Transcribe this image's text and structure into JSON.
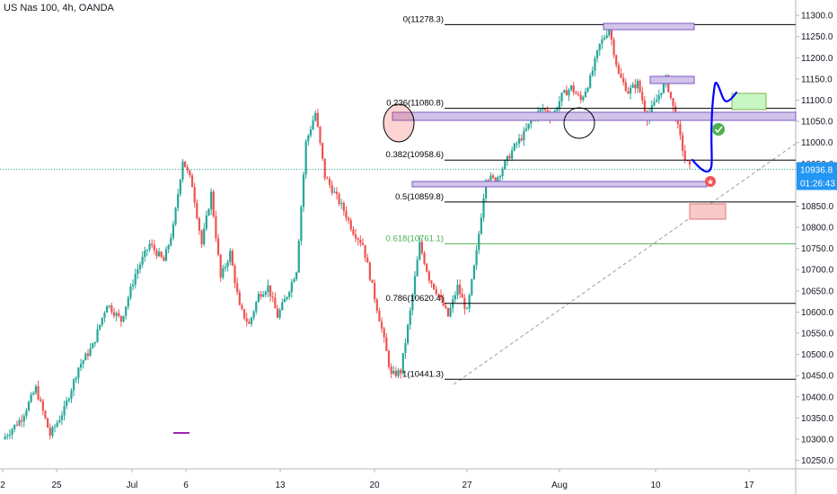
{
  "header": {
    "symbol_title": "US Nas 100, 4h, OANDA"
  },
  "colors": {
    "up": "#26a69a",
    "down": "#ef5350",
    "fib": "#000000",
    "fib_618": "#4caf50",
    "price_tag": "#2196f3",
    "zone_fill": "#d1c4e9",
    "zone_border": "#7e57c2",
    "drawing": "#0000ff",
    "target_fill": "#c8f7c5",
    "stop_fill": "#f8c9c9",
    "trendline": "#9e9e9e"
  },
  "price_tag": {
    "value": "10936.8",
    "timer": "01:26:43"
  },
  "chart_data": {
    "type": "candlestick",
    "title": "US Nas 100, 4h, OANDA",
    "ylim": [
      10230,
      11330
    ],
    "y_ticks": [
      10250,
      10300,
      10350,
      10400,
      10450,
      10500,
      10550,
      10600,
      10650,
      10700,
      10750,
      10800,
      10850,
      10900,
      10950,
      11000,
      11050,
      11100,
      11150,
      11200,
      11250,
      11300
    ],
    "y_tick_labels": [
      "10250.0",
      "10300.0",
      "10350.0",
      "10400.0",
      "10450.0",
      "10500.0",
      "10550.0",
      "10600.0",
      "10650.0",
      "10700.0",
      "10750.0",
      "10800.0",
      "10850.0",
      "10900.0",
      "10950.0",
      "11000.0",
      "11050.0",
      "11100.0",
      "11150.0",
      "11200.0",
      "11250.0",
      "11300.0"
    ],
    "x_tick_labels": [
      "2",
      "25",
      "Jul",
      "6",
      "13",
      "20",
      "27",
      "Aug",
      "10",
      "17"
    ],
    "last_price": 10936.8,
    "fib_levels": [
      {
        "label": "0(11278.3)",
        "price": 11278.3
      },
      {
        "label": "0.236(11080.8)",
        "price": 11080.8
      },
      {
        "label": "0.382(10958.6)",
        "price": 10958.6
      },
      {
        "label": "0.5(10859.8)",
        "price": 10859.8
      },
      {
        "label": "0.618(10761.1)",
        "price": 10761.1
      },
      {
        "label": "0.786(10620.4)",
        "price": 10620.4
      },
      {
        "label": "1(10441.3)",
        "price": 10441.3
      }
    ],
    "series": [
      {
        "name": "",
        "waypoints": [
          [
            0,
            10300
          ],
          [
            8,
            10350
          ],
          [
            14,
            10420
          ],
          [
            20,
            10310
          ],
          [
            26,
            10370
          ],
          [
            32,
            10470
          ],
          [
            38,
            10520
          ],
          [
            44,
            10620
          ],
          [
            50,
            10580
          ],
          [
            56,
            10690
          ],
          [
            62,
            10760
          ],
          [
            68,
            10720
          ],
          [
            72,
            10800
          ],
          [
            76,
            10960
          ],
          [
            80,
            10900
          ],
          [
            84,
            10760
          ],
          [
            88,
            10880
          ],
          [
            92,
            10680
          ],
          [
            96,
            10740
          ],
          [
            100,
            10610
          ],
          [
            104,
            10570
          ],
          [
            108,
            10640
          ],
          [
            112,
            10660
          ],
          [
            116,
            10590
          ],
          [
            120,
            10640
          ],
          [
            124,
            10700
          ],
          [
            128,
            11000
          ],
          [
            132,
            11070
          ],
          [
            136,
            10920
          ],
          [
            140,
            10880
          ],
          [
            144,
            10840
          ],
          [
            148,
            10790
          ],
          [
            152,
            10760
          ],
          [
            156,
            10660
          ],
          [
            160,
            10560
          ],
          [
            164,
            10450
          ],
          [
            168,
            10460
          ],
          [
            172,
            10600
          ],
          [
            176,
            10760
          ],
          [
            180,
            10680
          ],
          [
            184,
            10640
          ],
          [
            188,
            10590
          ],
          [
            192,
            10660
          ],
          [
            196,
            10600
          ],
          [
            200,
            10740
          ],
          [
            204,
            10920
          ],
          [
            208,
            10910
          ],
          [
            212,
            10950
          ],
          [
            216,
            10990
          ],
          [
            220,
            11020
          ],
          [
            224,
            11060
          ],
          [
            228,
            11080
          ],
          [
            232,
            11060
          ],
          [
            236,
            11110
          ],
          [
            240,
            11130
          ],
          [
            244,
            11100
          ],
          [
            248,
            11150
          ],
          [
            252,
            11230
          ],
          [
            256,
            11270
          ],
          [
            260,
            11160
          ],
          [
            264,
            11120
          ],
          [
            268,
            11140
          ],
          [
            272,
            11060
          ],
          [
            276,
            11100
          ],
          [
            280,
            11150
          ],
          [
            284,
            11060
          ],
          [
            288,
            10960
          ],
          [
            290,
            10940
          ]
        ]
      }
    ]
  }
}
